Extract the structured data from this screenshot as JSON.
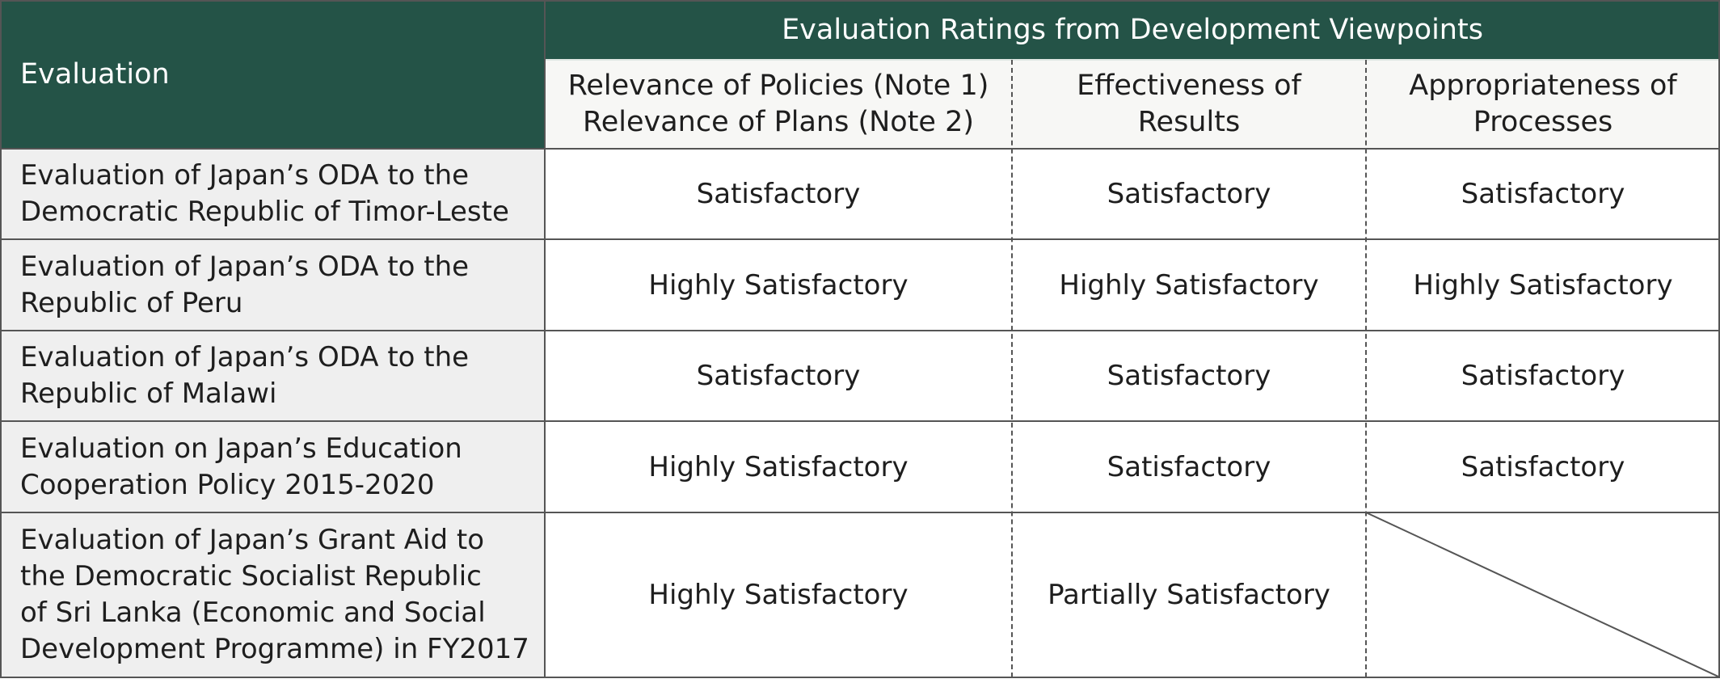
{
  "table": {
    "header": {
      "evaluation_label": "Evaluation",
      "group_label": "Evaluation Ratings from Development Viewpoints",
      "col1_line1": "Relevance of Policies (Note 1)",
      "col1_line2": "Relevance of Plans (Note 2)",
      "col2_line1": "Effectiveness of",
      "col2_line2": "Results",
      "col3_line1": "Appropriateness of",
      "col3_line2": "Processes"
    },
    "rows": [
      {
        "label_lines": [
          "Evaluation of Japan’s ODA to the",
          "Democratic Republic of Timor-Leste"
        ],
        "relevance": "Satisfactory",
        "effectiveness": "Satisfactory",
        "appropriateness": "Satisfactory"
      },
      {
        "label_lines": [
          "Evaluation of Japan’s ODA to the",
          "Republic of Peru"
        ],
        "relevance": "Highly Satisfactory",
        "effectiveness": "Highly Satisfactory",
        "appropriateness": "Highly Satisfactory"
      },
      {
        "label_lines": [
          "Evaluation of Japan’s ODA to the",
          "Republic of Malawi"
        ],
        "relevance": "Satisfactory",
        "effectiveness": "Satisfactory",
        "appropriateness": "Satisfactory"
      },
      {
        "label_lines": [
          "Evaluation on Japan’s Education",
          "Cooperation Policy 2015-2020"
        ],
        "relevance": "Highly Satisfactory",
        "effectiveness": "Satisfactory",
        "appropriateness": "Satisfactory"
      },
      {
        "label_lines": [
          "Evaluation of Japan’s Grant Aid to",
          "the Democratic Socialist Republic",
          "of Sri Lanka (Economic and Social",
          "Development Programme) in FY2017"
        ],
        "relevance": "Highly Satisfactory",
        "effectiveness": "Partially Satisfactory",
        "appropriateness": ""
      }
    ]
  }
}
